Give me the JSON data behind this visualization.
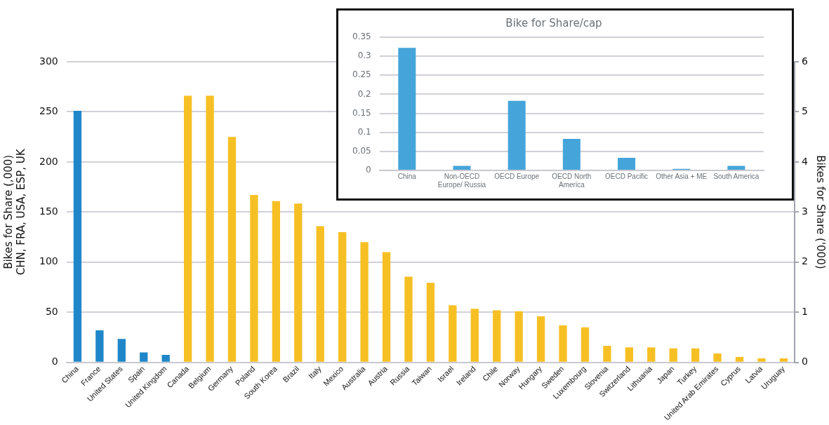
{
  "chart_data": [
    {
      "type": "bar",
      "ylabel": "Bikes for Share (,000)\nCHN, FRA, USA, ESP, UK",
      "y2label": "Bikes for Share ('000)",
      "categories": [
        "China",
        "France",
        "United States",
        "Spain",
        "United Kingdom",
        "Canada",
        "Belgium",
        "Germany",
        "Poland",
        "South Korea",
        "Brazil",
        "Italy",
        "Mexico",
        "Australia",
        "Austria",
        "Russia",
        "Taiwan",
        "Israel",
        "Ireland",
        "Chile",
        "Norway",
        "Hungary",
        "Sweden",
        "Luxembourg",
        "Slovenia",
        "Switzerland",
        "Lithuania",
        "Japan",
        "Turkey",
        "United Arab Emirates",
        "Cyprus",
        "Latvia",
        "Uruguay"
      ],
      "series": [
        {
          "color": "#1f87c9",
          "values": [
            251,
            32,
            23.5,
            10,
            7.5,
            null,
            null,
            null,
            null,
            null,
            null,
            null,
            null,
            null,
            null,
            null,
            null,
            null,
            null,
            null,
            null,
            null,
            null,
            null,
            null,
            null,
            null,
            null,
            null,
            null,
            null,
            null,
            null
          ]
        },
        {
          "color": "#f6c024",
          "axis": "y2",
          "values": [
            null,
            null,
            null,
            null,
            null,
            5.32,
            5.32,
            4.5,
            3.34,
            3.22,
            3.17,
            2.72,
            2.6,
            2.4,
            2.2,
            1.71,
            1.59,
            1.14,
            1.07,
            1.04,
            1.02,
            0.92,
            0.74,
            0.7,
            0.33,
            0.3,
            0.3,
            0.28,
            0.28,
            0.18,
            0.11,
            0.08,
            0.08
          ]
        }
      ],
      "ylim": [
        0,
        300
      ],
      "yticks": [
        0,
        50,
        100,
        150,
        200,
        250,
        300
      ],
      "y2lim": [
        0,
        6
      ],
      "y2ticks": [
        0,
        1,
        2,
        3,
        4,
        5,
        6
      ],
      "grid": "y"
    },
    {
      "type": "bar",
      "title": "Bike for Share/cap",
      "categories": [
        "China",
        "Non-OECD Europe/ Russia",
        "OECD Europe",
        "OECD North America",
        "OECD Pacific",
        "Other Asia + ME",
        "South America"
      ],
      "values": [
        0.322,
        0.012,
        0.183,
        0.083,
        0.033,
        0.004,
        0.012
      ],
      "color": "#45a5da",
      "ylim": [
        0,
        0.35
      ],
      "yticks": [
        0,
        0.05,
        0.1,
        0.15,
        0.2,
        0.25,
        0.3,
        0.35
      ],
      "grid": "y"
    }
  ]
}
